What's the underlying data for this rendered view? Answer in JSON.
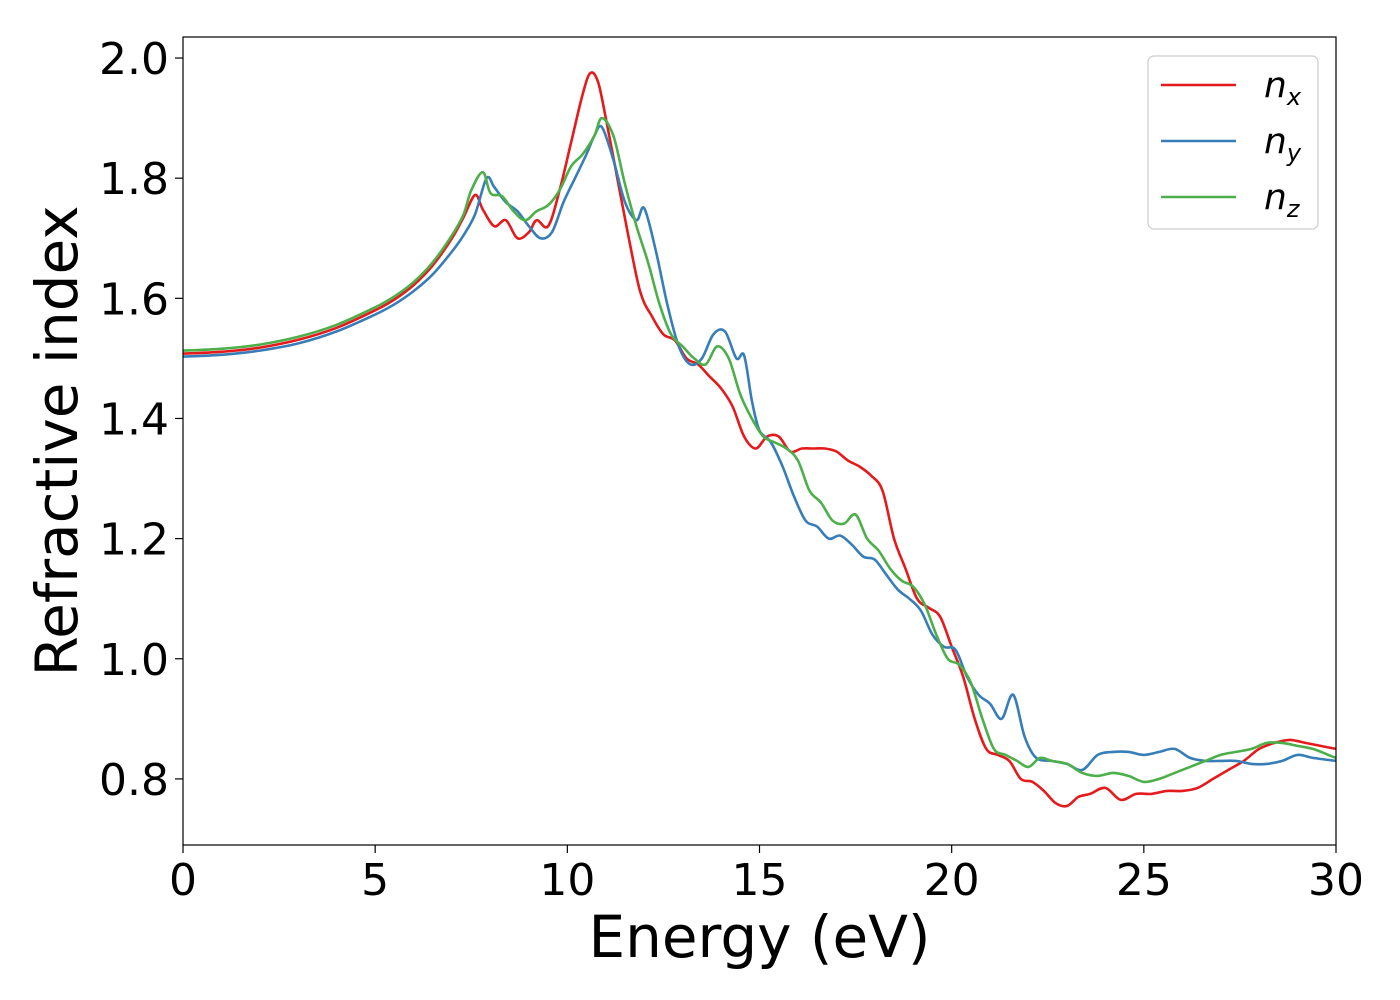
{
  "chart_data": {
    "type": "line",
    "xlabel": "Energy (eV)",
    "ylabel": "Refractive index",
    "xlim": [
      0,
      30
    ],
    "ylim": [
      0.69,
      2.035
    ],
    "xticks": [
      0,
      5,
      10,
      15,
      20,
      25,
      30
    ],
    "xtick_labels": [
      "0",
      "5",
      "10",
      "15",
      "20",
      "25",
      "30"
    ],
    "yticks": [
      0.8,
      1.0,
      1.2,
      1.4,
      1.6,
      1.8,
      2.0
    ],
    "ytick_labels": [
      "0.8",
      "1.0",
      "1.2",
      "1.4",
      "1.6",
      "1.8",
      "2.0"
    ],
    "grid": false,
    "legend_position": "top-right",
    "series": [
      {
        "name": "n",
        "subscript": "x",
        "color": "#e41a1c",
        "x": [
          0,
          1,
          2,
          3,
          4,
          5,
          5.5,
          6,
          6.5,
          7,
          7.3,
          7.6,
          7.8,
          8.1,
          8.4,
          8.7,
          9.0,
          9.2,
          9.5,
          9.8,
          10.1,
          10.4,
          10.6,
          10.8,
          11.0,
          11.3,
          11.6,
          11.9,
          12.2,
          12.5,
          12.8,
          13.1,
          13.4,
          13.7,
          14.0,
          14.3,
          14.6,
          14.9,
          15.2,
          15.5,
          15.8,
          16.1,
          16.4,
          16.7,
          17.0,
          17.3,
          17.6,
          17.9,
          18.2,
          18.5,
          18.8,
          19.1,
          19.4,
          19.7,
          20.0,
          20.3,
          20.6,
          20.9,
          21.2,
          21.5,
          21.8,
          22.1,
          22.4,
          22.7,
          23.0,
          23.3,
          23.6,
          24.0,
          24.4,
          24.8,
          25.2,
          25.6,
          26.0,
          26.4,
          26.8,
          27.2,
          27.6,
          28.0,
          28.4,
          28.8,
          29.2,
          29.6,
          30.0
        ],
        "y": [
          1.508,
          1.511,
          1.518,
          1.531,
          1.551,
          1.58,
          1.598,
          1.622,
          1.655,
          1.7,
          1.735,
          1.772,
          1.748,
          1.72,
          1.73,
          1.7,
          1.71,
          1.73,
          1.72,
          1.78,
          1.86,
          1.94,
          1.975,
          1.96,
          1.9,
          1.8,
          1.7,
          1.61,
          1.57,
          1.54,
          1.53,
          1.5,
          1.49,
          1.47,
          1.45,
          1.42,
          1.37,
          1.35,
          1.37,
          1.37,
          1.345,
          1.35,
          1.35,
          1.35,
          1.345,
          1.33,
          1.32,
          1.305,
          1.28,
          1.2,
          1.15,
          1.1,
          1.085,
          1.07,
          1.02,
          0.97,
          0.9,
          0.85,
          0.84,
          0.83,
          0.8,
          0.795,
          0.78,
          0.76,
          0.755,
          0.77,
          0.775,
          0.785,
          0.765,
          0.775,
          0.775,
          0.78,
          0.78,
          0.785,
          0.8,
          0.815,
          0.83,
          0.85,
          0.86,
          0.865,
          0.86,
          0.855,
          0.85
        ]
      },
      {
        "name": "n",
        "subscript": "y",
        "color": "#377eb8",
        "x": [
          0,
          1,
          2,
          3,
          4,
          5,
          5.5,
          6,
          6.5,
          7,
          7.3,
          7.6,
          7.9,
          8.1,
          8.4,
          8.7,
          9.0,
          9.3,
          9.6,
          9.9,
          10.2,
          10.5,
          10.7,
          10.9,
          11.2,
          11.5,
          11.8,
          12.0,
          12.3,
          12.6,
          12.9,
          13.2,
          13.5,
          13.8,
          14.1,
          14.4,
          14.6,
          14.8,
          15.0,
          15.3,
          15.6,
          15.9,
          16.2,
          16.5,
          16.8,
          17.1,
          17.4,
          17.7,
          18.0,
          18.3,
          18.6,
          18.9,
          19.2,
          19.5,
          19.8,
          20.1,
          20.4,
          20.7,
          21.0,
          21.3,
          21.6,
          21.9,
          22.2,
          22.6,
          23.0,
          23.4,
          23.8,
          24.2,
          24.6,
          25.0,
          25.4,
          25.8,
          26.2,
          26.6,
          27.0,
          27.4,
          27.8,
          28.2,
          28.6,
          29.0,
          29.4,
          30.0
        ],
        "y": [
          1.503,
          1.506,
          1.513,
          1.525,
          1.545,
          1.573,
          1.59,
          1.612,
          1.64,
          1.678,
          1.705,
          1.74,
          1.8,
          1.785,
          1.76,
          1.745,
          1.72,
          1.7,
          1.71,
          1.76,
          1.8,
          1.84,
          1.87,
          1.885,
          1.83,
          1.76,
          1.73,
          1.75,
          1.68,
          1.59,
          1.52,
          1.49,
          1.5,
          1.54,
          1.545,
          1.5,
          1.505,
          1.43,
          1.38,
          1.36,
          1.32,
          1.27,
          1.23,
          1.22,
          1.2,
          1.205,
          1.19,
          1.17,
          1.165,
          1.14,
          1.115,
          1.1,
          1.08,
          1.04,
          1.02,
          1.015,
          0.97,
          0.94,
          0.925,
          0.9,
          0.94,
          0.87,
          0.835,
          0.83,
          0.825,
          0.815,
          0.84,
          0.845,
          0.845,
          0.84,
          0.845,
          0.85,
          0.835,
          0.83,
          0.83,
          0.83,
          0.825,
          0.825,
          0.83,
          0.84,
          0.835,
          0.83
        ]
      },
      {
        "name": "n",
        "subscript": "z",
        "color": "#4daf4a",
        "x": [
          0,
          1,
          2,
          3,
          4,
          5,
          5.5,
          6,
          6.5,
          7,
          7.3,
          7.5,
          7.8,
          8.0,
          8.3,
          8.6,
          8.9,
          9.2,
          9.5,
          9.8,
          10.1,
          10.4,
          10.7,
          10.9,
          11.2,
          11.5,
          11.8,
          12.1,
          12.4,
          12.7,
          13.0,
          13.3,
          13.6,
          13.9,
          14.2,
          14.5,
          14.8,
          15.1,
          15.4,
          15.7,
          16.0,
          16.3,
          16.6,
          16.9,
          17.2,
          17.5,
          17.8,
          18.1,
          18.4,
          18.7,
          19.0,
          19.3,
          19.6,
          19.9,
          20.2,
          20.5,
          20.8,
          21.1,
          21.4,
          21.7,
          22.0,
          22.3,
          22.6,
          23.0,
          23.4,
          23.8,
          24.2,
          24.6,
          25.0,
          25.4,
          25.8,
          26.2,
          26.6,
          27.0,
          27.4,
          27.8,
          28.2,
          28.6,
          29.0,
          29.4,
          29.8,
          30.0
        ],
        "y": [
          1.513,
          1.516,
          1.523,
          1.536,
          1.556,
          1.585,
          1.603,
          1.627,
          1.66,
          1.705,
          1.74,
          1.78,
          1.81,
          1.775,
          1.77,
          1.745,
          1.73,
          1.745,
          1.755,
          1.78,
          1.82,
          1.84,
          1.87,
          1.9,
          1.87,
          1.79,
          1.72,
          1.66,
          1.59,
          1.54,
          1.52,
          1.5,
          1.49,
          1.52,
          1.5,
          1.44,
          1.4,
          1.37,
          1.36,
          1.35,
          1.33,
          1.28,
          1.26,
          1.23,
          1.225,
          1.24,
          1.2,
          1.18,
          1.15,
          1.13,
          1.12,
          1.09,
          1.04,
          1.0,
          0.99,
          0.96,
          0.9,
          0.85,
          0.84,
          0.83,
          0.82,
          0.835,
          0.83,
          0.825,
          0.81,
          0.805,
          0.81,
          0.805,
          0.795,
          0.8,
          0.81,
          0.82,
          0.83,
          0.84,
          0.845,
          0.85,
          0.86,
          0.86,
          0.855,
          0.85,
          0.84,
          0.835
        ]
      }
    ]
  }
}
